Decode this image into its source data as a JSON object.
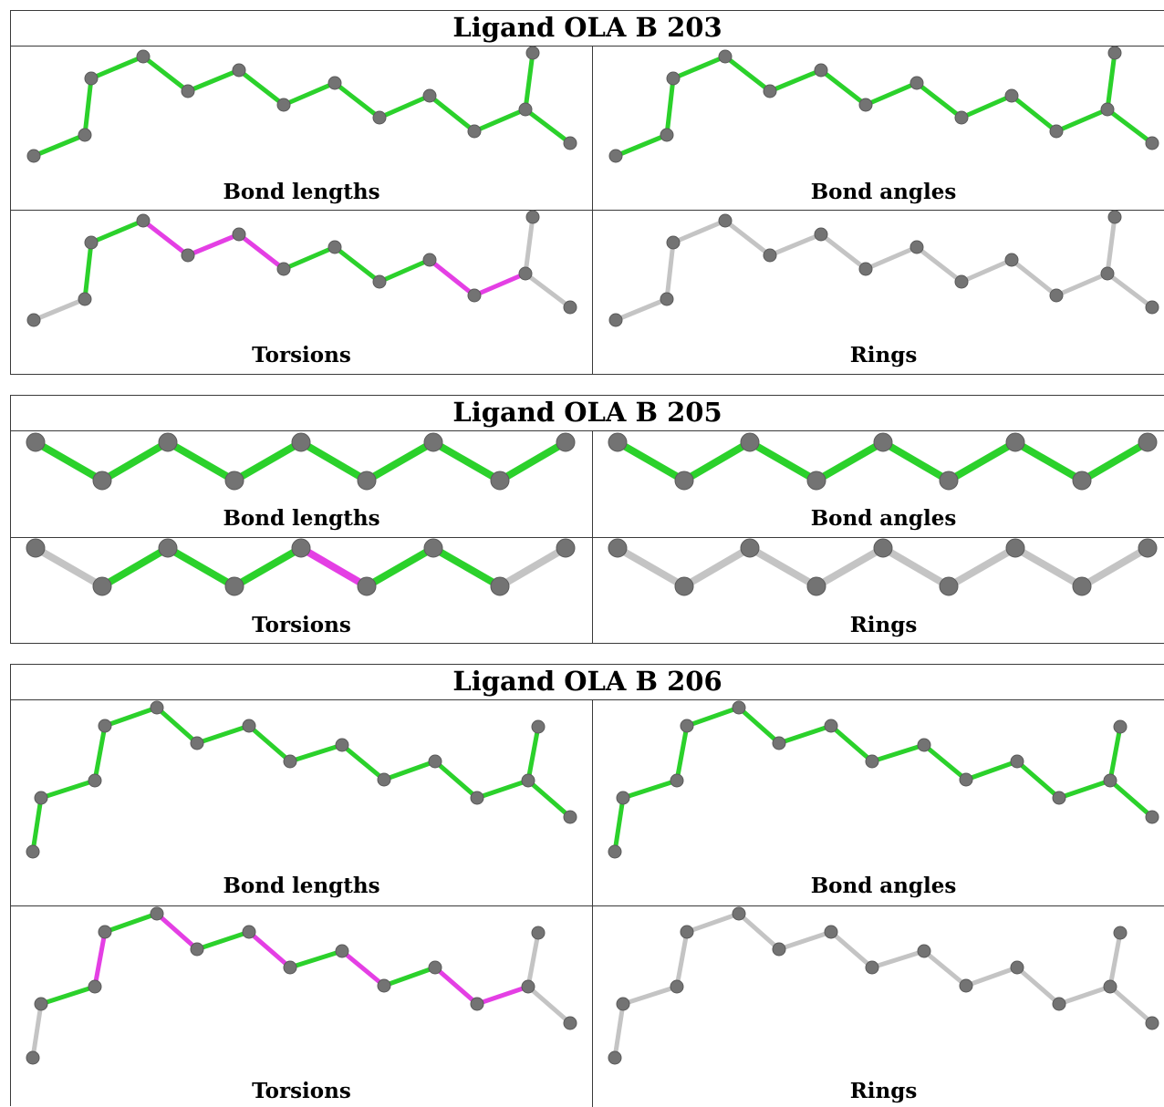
{
  "colors": {
    "ok_bond": "#2bd12b",
    "outlier_bond": "#e43fe4",
    "neutral_bond": "#c4c4c4",
    "atom": "#737373"
  },
  "panel_labels": {
    "bond_lengths": "Bond lengths",
    "bond_angles": "Bond angles",
    "torsions": "Torsions",
    "rings": "Rings"
  },
  "ligands": [
    {
      "title": "Ligand OLA B 203",
      "bonds": {
        "bond_lengths": [
          "g",
          "g",
          "g",
          "g",
          "g",
          "g",
          "g",
          "g",
          "g",
          "g",
          "g",
          "g",
          "g",
          "g",
          "g"
        ],
        "bond_angles": [
          "g",
          "g",
          "g",
          "g",
          "g",
          "g",
          "g",
          "g",
          "g",
          "g",
          "g",
          "g",
          "g",
          "g",
          "g"
        ],
        "torsions": [
          "n",
          "g",
          "g",
          "m",
          "m",
          "m",
          "g",
          "g",
          "g",
          "m",
          "m",
          "n",
          "n",
          "n",
          "n"
        ],
        "rings": [
          "n",
          "n",
          "n",
          "n",
          "n",
          "n",
          "n",
          "n",
          "n",
          "n",
          "n",
          "n",
          "n",
          "n",
          "n"
        ]
      }
    },
    {
      "title": "Ligand OLA B 205",
      "bonds": {
        "bond_lengths": [
          "g",
          "g",
          "g",
          "g",
          "g",
          "g",
          "g",
          "g"
        ],
        "bond_angles": [
          "g",
          "g",
          "g",
          "g",
          "g",
          "g",
          "g",
          "g"
        ],
        "torsions": [
          "n",
          "g",
          "g",
          "g",
          "m",
          "g",
          "g",
          "n"
        ],
        "rings": [
          "n",
          "n",
          "n",
          "n",
          "n",
          "n",
          "n",
          "n"
        ]
      }
    },
    {
      "title": "Ligand OLA B 206",
      "bonds": {
        "bond_lengths": [
          "g",
          "g",
          "g",
          "g",
          "g",
          "g",
          "g",
          "g",
          "g",
          "g",
          "g",
          "g",
          "g",
          "g",
          "g"
        ],
        "bond_angles": [
          "g",
          "g",
          "g",
          "g",
          "g",
          "g",
          "g",
          "g",
          "g",
          "g",
          "g",
          "g",
          "g",
          "g",
          "g"
        ],
        "torsions": [
          "n",
          "g",
          "m",
          "g",
          "m",
          "g",
          "m",
          "g",
          "m",
          "g",
          "m",
          "m",
          "n",
          "n",
          "n"
        ],
        "rings": [
          "n",
          "n",
          "n",
          "n",
          "n",
          "n",
          "n",
          "n",
          "n",
          "n",
          "n",
          "n",
          "n",
          "n",
          "n"
        ]
      }
    }
  ]
}
